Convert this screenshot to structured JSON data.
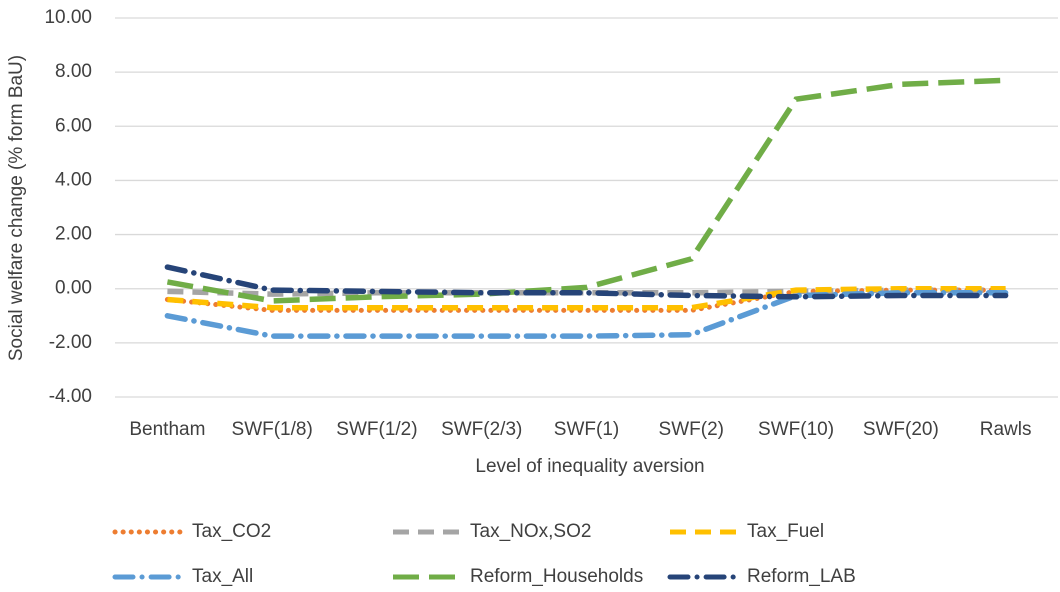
{
  "chart_data": {
    "type": "line",
    "x_label": "Level of inequality aversion",
    "y_label": "Social welfare change  (% form BaU)",
    "categories": [
      "Bentham",
      "SWF(1/8)",
      "SWF(1/2)",
      "SWF(2/3)",
      "SWF(1)",
      "SWF(2)",
      "SWF(10)",
      "SWF(20)",
      "Rawls"
    ],
    "ylim": [
      -4,
      10
    ],
    "yticks": [
      {
        "value": -4,
        "label": "-4.00"
      },
      {
        "value": -2,
        "label": "-2.00"
      },
      {
        "value": 0,
        "label": "0.00"
      },
      {
        "value": 2,
        "label": "2.00"
      },
      {
        "value": 4,
        "label": "4.00"
      },
      {
        "value": 6,
        "label": "6.00"
      },
      {
        "value": 8,
        "label": "8.00"
      },
      {
        "value": 10,
        "label": "10.00"
      }
    ],
    "grid": true,
    "legend": "bottom",
    "series": [
      {
        "name": "Tax_CO2",
        "color": "#ed7d31",
        "dash": "dot",
        "values": [
          -0.4,
          -0.8,
          -0.8,
          -0.8,
          -0.8,
          -0.8,
          -0.1,
          -0.05,
          -0.05
        ]
      },
      {
        "name": "Tax_NOx,SO2",
        "color": "#a5a5a5",
        "dash": "dash",
        "values": [
          -0.1,
          -0.2,
          -0.15,
          -0.15,
          -0.15,
          -0.15,
          -0.1,
          -0.05,
          -0.05
        ]
      },
      {
        "name": "Tax_Fuel",
        "color": "#ffc000",
        "dash": "dash",
        "values": [
          -0.4,
          -0.7,
          -0.7,
          -0.7,
          -0.7,
          -0.7,
          -0.05,
          0,
          0
        ]
      },
      {
        "name": "Tax_All",
        "color": "#5b9bd5",
        "dash": "dash-dot",
        "values": [
          -1.0,
          -1.75,
          -1.75,
          -1.75,
          -1.75,
          -1.7,
          -0.25,
          -0.15,
          -0.15
        ]
      },
      {
        "name": "Reform_Households",
        "color": "#70ad47",
        "dash": "long-dash",
        "values": [
          0.25,
          -0.45,
          -0.3,
          -0.2,
          0.05,
          1.1,
          7.0,
          7.55,
          7.7
        ]
      },
      {
        "name": "Reform_LAB",
        "color": "#264478",
        "dash": "dash-dot",
        "values": [
          0.8,
          -0.05,
          -0.1,
          -0.15,
          -0.15,
          -0.25,
          -0.3,
          -0.25,
          -0.25
        ]
      }
    ]
  }
}
